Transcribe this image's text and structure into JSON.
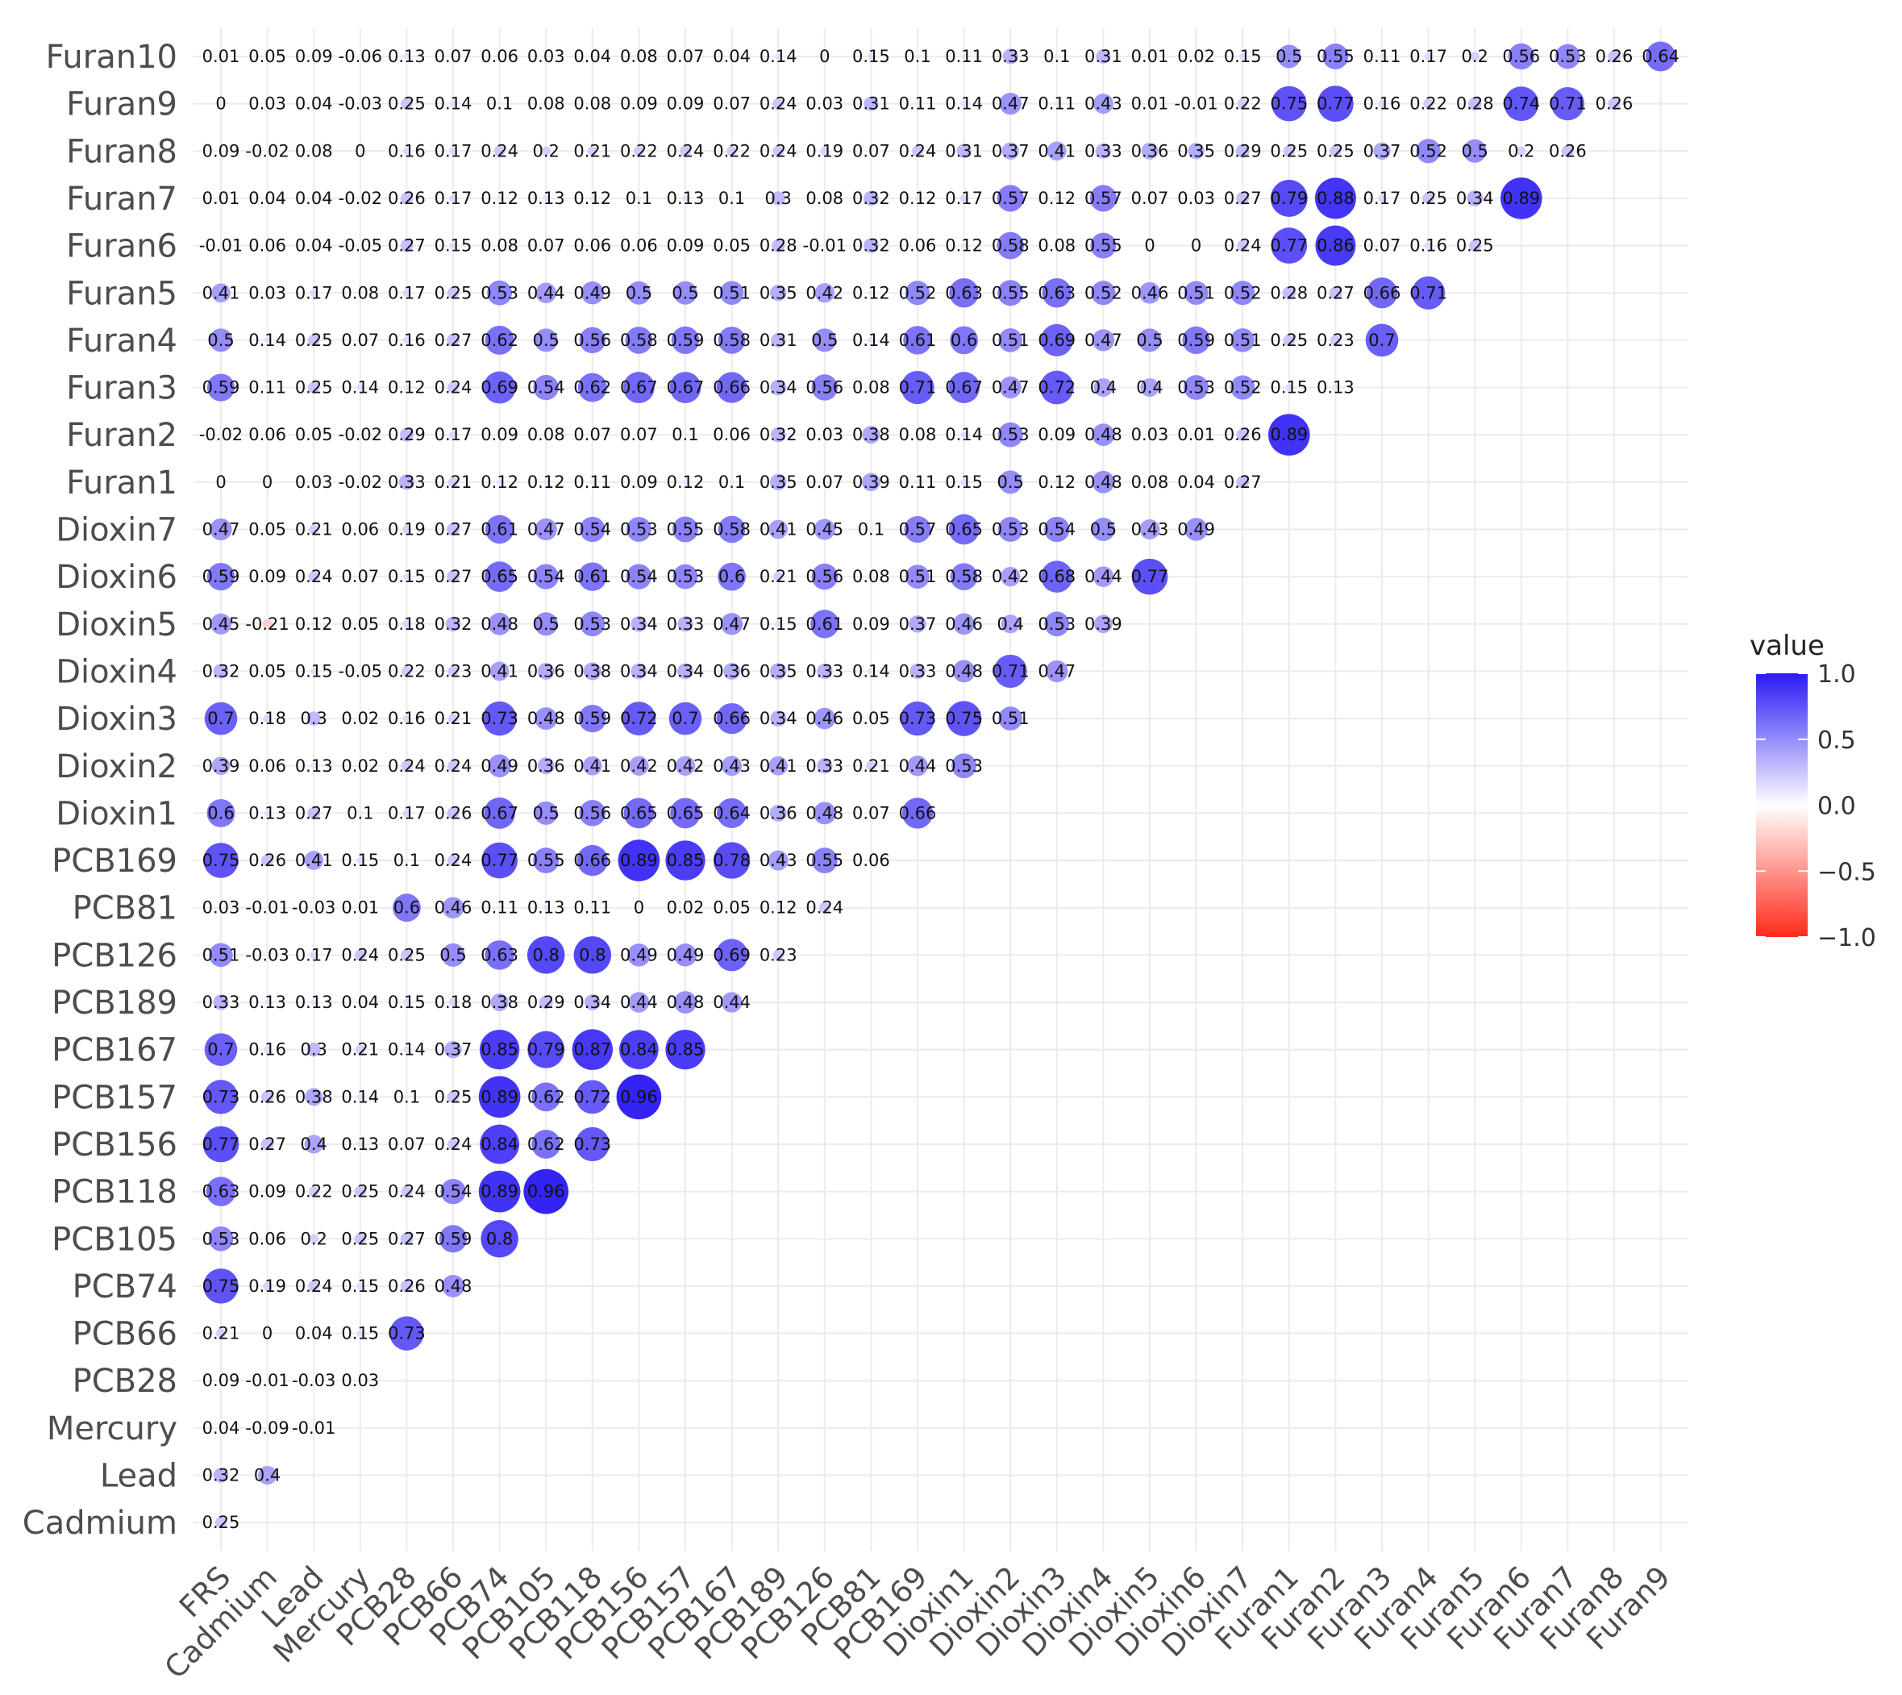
{
  "chart_data": {
    "type": "heatmap",
    "subtype": "lower-triangle correlation matrix with circles",
    "x_labels": [
      "FRS",
      "Cadmium",
      "Lead",
      "Mercury",
      "PCB28",
      "PCB66",
      "PCB74",
      "PCB105",
      "PCB118",
      "PCB156",
      "PCB157",
      "PCB167",
      "PCB189",
      "PCB126",
      "PCB81",
      "PCB169",
      "Dioxin1",
      "Dioxin2",
      "Dioxin3",
      "Dioxin4",
      "Dioxin5",
      "Dioxin6",
      "Dioxin7",
      "Furan1",
      "Furan2",
      "Furan3",
      "Furan4",
      "Furan5",
      "Furan6",
      "Furan7",
      "Furan8",
      "Furan9"
    ],
    "y_labels": [
      "Furan10",
      "Furan9",
      "Furan8",
      "Furan7",
      "Furan6",
      "Furan5",
      "Furan4",
      "Furan3",
      "Furan2",
      "Furan1",
      "Dioxin7",
      "Dioxin6",
      "Dioxin5",
      "Dioxin4",
      "Dioxin3",
      "Dioxin2",
      "Dioxin1",
      "PCB169",
      "PCB81",
      "PCB126",
      "PCB189",
      "PCB167",
      "PCB157",
      "PCB156",
      "PCB118",
      "PCB105",
      "PCB74",
      "PCB66",
      "PCB28",
      "Mercury",
      "Lead",
      "Cadmium"
    ],
    "values": [
      [
        0.01,
        0.05,
        0.09,
        -0.06,
        0.13,
        0.07,
        0.06,
        0.03,
        0.04,
        0.08,
        0.07,
        0.04,
        0.14,
        0,
        0.15,
        0.1,
        0.11,
        0.33,
        0.1,
        0.31,
        0.01,
        0.02,
        0.15,
        0.5,
        0.55,
        0.11,
        0.17,
        0.2,
        0.56,
        0.53,
        0.26,
        0.64
      ],
      [
        0,
        0.03,
        0.04,
        -0.03,
        0.25,
        0.14,
        0.1,
        0.08,
        0.08,
        0.09,
        0.09,
        0.07,
        0.24,
        0.03,
        0.31,
        0.11,
        0.14,
        0.47,
        0.11,
        0.43,
        0.01,
        -0.01,
        0.22,
        0.75,
        0.77,
        0.16,
        0.22,
        0.28,
        0.74,
        0.71,
        0.26
      ],
      [
        0.09,
        -0.02,
        0.08,
        0,
        0.16,
        0.17,
        0.24,
        0.2,
        0.21,
        0.22,
        0.24,
        0.22,
        0.24,
        0.19,
        0.07,
        0.24,
        0.31,
        0.37,
        0.41,
        0.33,
        0.36,
        0.35,
        0.29,
        0.25,
        0.25,
        0.37,
        0.52,
        0.5,
        0.2,
        0.26
      ],
      [
        0.01,
        0.04,
        0.04,
        -0.02,
        0.26,
        0.17,
        0.12,
        0.13,
        0.12,
        0.1,
        0.13,
        0.1,
        0.3,
        0.08,
        0.32,
        0.12,
        0.17,
        0.57,
        0.12,
        0.57,
        0.07,
        0.03,
        0.27,
        0.79,
        0.88,
        0.17,
        0.25,
        0.34,
        0.89
      ],
      [
        -0.01,
        0.06,
        0.04,
        -0.05,
        0.27,
        0.15,
        0.08,
        0.07,
        0.06,
        0.06,
        0.09,
        0.05,
        0.28,
        -0.01,
        0.32,
        0.06,
        0.12,
        0.58,
        0.08,
        0.55,
        0,
        0,
        0.24,
        0.77,
        0.86,
        0.07,
        0.16,
        0.25
      ],
      [
        0.41,
        0.03,
        0.17,
        0.08,
        0.17,
        0.25,
        0.53,
        0.44,
        0.49,
        0.5,
        0.5,
        0.51,
        0.35,
        0.42,
        0.12,
        0.52,
        0.63,
        0.55,
        0.63,
        0.52,
        0.46,
        0.51,
        0.52,
        0.28,
        0.27,
        0.66,
        0.71
      ],
      [
        0.5,
        0.14,
        0.25,
        0.07,
        0.16,
        0.27,
        0.62,
        0.5,
        0.56,
        0.58,
        0.59,
        0.58,
        0.31,
        0.5,
        0.14,
        0.61,
        0.6,
        0.51,
        0.69,
        0.47,
        0.5,
        0.59,
        0.51,
        0.25,
        0.23,
        0.7
      ],
      [
        0.59,
        0.11,
        0.25,
        0.14,
        0.12,
        0.24,
        0.69,
        0.54,
        0.62,
        0.67,
        0.67,
        0.66,
        0.34,
        0.56,
        0.08,
        0.71,
        0.67,
        0.47,
        0.72,
        0.4,
        0.4,
        0.53,
        0.52,
        0.15,
        0.13
      ],
      [
        -0.02,
        0.06,
        0.05,
        -0.02,
        0.29,
        0.17,
        0.09,
        0.08,
        0.07,
        0.07,
        0.1,
        0.06,
        0.32,
        0.03,
        0.38,
        0.08,
        0.14,
        0.53,
        0.09,
        0.48,
        0.03,
        0.01,
        0.26,
        0.89
      ],
      [
        0,
        0,
        0.03,
        -0.02,
        0.33,
        0.21,
        0.12,
        0.12,
        0.11,
        0.09,
        0.12,
        0.1,
        0.35,
        0.07,
        0.39,
        0.11,
        0.15,
        0.5,
        0.12,
        0.48,
        0.08,
        0.04,
        0.27
      ],
      [
        0.47,
        0.05,
        0.21,
        0.06,
        0.19,
        0.27,
        0.61,
        0.47,
        0.54,
        0.53,
        0.55,
        0.58,
        0.41,
        0.45,
        0.1,
        0.57,
        0.65,
        0.53,
        0.54,
        0.5,
        0.43,
        0.49
      ],
      [
        0.59,
        0.09,
        0.24,
        0.07,
        0.15,
        0.27,
        0.65,
        0.54,
        0.61,
        0.54,
        0.53,
        0.6,
        0.21,
        0.56,
        0.08,
        0.51,
        0.58,
        0.42,
        0.68,
        0.44,
        0.77
      ],
      [
        0.45,
        -0.21,
        0.12,
        0.05,
        0.18,
        0.32,
        0.48,
        0.5,
        0.53,
        0.34,
        0.33,
        0.47,
        0.15,
        0.61,
        0.09,
        0.37,
        0.46,
        0.4,
        0.53,
        0.39
      ],
      [
        0.32,
        0.05,
        0.15,
        -0.05,
        0.22,
        0.23,
        0.41,
        0.36,
        0.38,
        0.34,
        0.34,
        0.36,
        0.35,
        0.33,
        0.14,
        0.33,
        0.48,
        0.71,
        0.47
      ],
      [
        0.7,
        0.18,
        0.3,
        0.02,
        0.16,
        0.21,
        0.73,
        0.48,
        0.59,
        0.72,
        0.7,
        0.66,
        0.34,
        0.46,
        0.05,
        0.73,
        0.75,
        0.51
      ],
      [
        0.39,
        0.06,
        0.13,
        0.02,
        0.24,
        0.24,
        0.49,
        0.36,
        0.41,
        0.42,
        0.42,
        0.43,
        0.41,
        0.33,
        0.21,
        0.44,
        0.53
      ],
      [
        0.6,
        0.13,
        0.27,
        0.1,
        0.17,
        0.26,
        0.67,
        0.5,
        0.56,
        0.65,
        0.65,
        0.64,
        0.36,
        0.48,
        0.07,
        0.66
      ],
      [
        0.75,
        0.26,
        0.41,
        0.15,
        0.1,
        0.24,
        0.77,
        0.55,
        0.66,
        0.89,
        0.85,
        0.78,
        0.43,
        0.55,
        0.06
      ],
      [
        0.03,
        -0.01,
        -0.03,
        0.01,
        0.6,
        0.46,
        0.11,
        0.13,
        0.11,
        0,
        0.02,
        0.05,
        0.12,
        0.24
      ],
      [
        0.51,
        -0.03,
        0.17,
        0.24,
        0.25,
        0.5,
        0.63,
        0.8,
        0.8,
        0.49,
        0.49,
        0.69,
        0.23
      ],
      [
        0.33,
        0.13,
        0.13,
        0.04,
        0.15,
        0.18,
        0.38,
        0.29,
        0.34,
        0.44,
        0.48,
        0.44
      ],
      [
        0.7,
        0.16,
        0.3,
        0.21,
        0.14,
        0.37,
        0.85,
        0.79,
        0.87,
        0.84,
        0.85
      ],
      [
        0.73,
        0.26,
        0.38,
        0.14,
        0.1,
        0.25,
        0.89,
        0.62,
        0.72,
        0.96
      ],
      [
        0.77,
        0.27,
        0.4,
        0.13,
        0.07,
        0.24,
        0.84,
        0.62,
        0.73
      ],
      [
        0.63,
        0.09,
        0.22,
        0.25,
        0.24,
        0.54,
        0.89,
        0.96
      ],
      [
        0.53,
        0.06,
        0.2,
        0.25,
        0.27,
        0.59,
        0.8
      ],
      [
        0.75,
        0.19,
        0.24,
        0.15,
        0.26,
        0.48
      ],
      [
        0.21,
        0,
        0.04,
        0.15,
        0.73
      ],
      [
        0.09,
        -0.01,
        -0.03,
        0.03
      ],
      [
        0.04,
        -0.09,
        -0.01
      ],
      [
        0.32,
        0.4
      ],
      [
        0.25
      ]
    ],
    "legend": {
      "title": "value",
      "ticks": [
        "1.0",
        "0.5",
        "0.0",
        "−0.5",
        "−1.0"
      ],
      "tick_values": [
        1.0,
        0.5,
        0.0,
        -0.5,
        -1.0
      ],
      "low_color": "#ff2a1a",
      "mid_color": "#ffffff",
      "high_color": "#2a1af5",
      "range": [
        -1.0,
        1.0
      ],
      "placement": "right"
    },
    "grid": true,
    "colors": {
      "grid": "#ebebeb",
      "tick_text": "#4d4d4d"
    }
  }
}
